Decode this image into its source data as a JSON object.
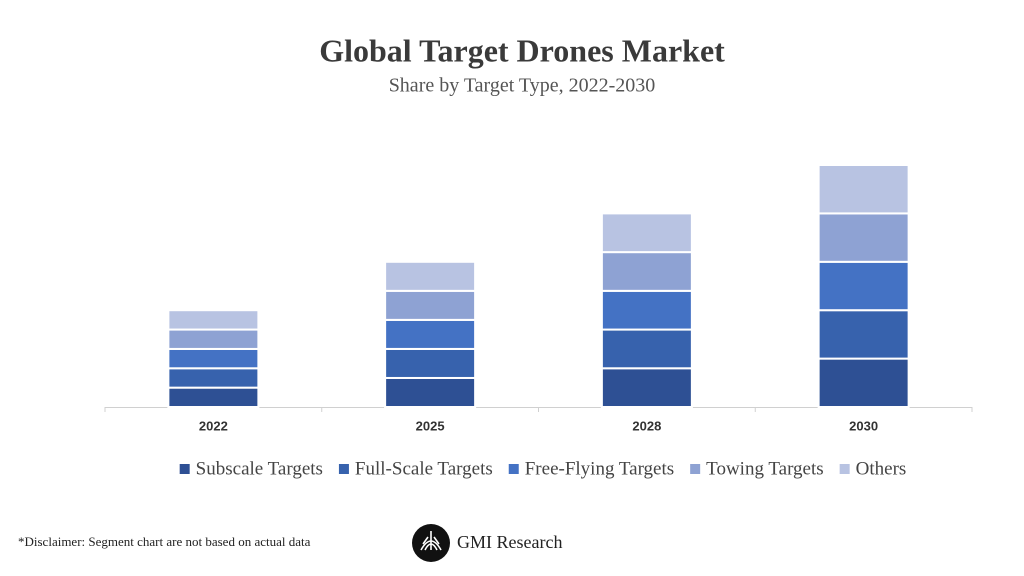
{
  "chart_data": {
    "type": "stacked-bar",
    "title": "Global Target Drones Market",
    "subtitle": "Share by Target Type, 2022-2030",
    "categories": [
      "2022",
      "2025",
      "2028",
      "2030"
    ],
    "series": [
      {
        "name": "Subscale Targets",
        "color": "#2e5094",
        "values": [
          20,
          30,
          40,
          50
        ]
      },
      {
        "name": "Full-Scale Targets",
        "color": "#3762ad",
        "values": [
          20,
          30,
          40,
          50
        ]
      },
      {
        "name": "Free-Flying Targets",
        "color": "#4472c4",
        "values": [
          20,
          30,
          40,
          50
        ]
      },
      {
        "name": "Towing Targets",
        "color": "#8ea2d3",
        "values": [
          20,
          30,
          40,
          50
        ]
      },
      {
        "name": "Others",
        "color": "#b8c3e2",
        "values": [
          20,
          30,
          40,
          50
        ]
      }
    ],
    "ylim": [
      0,
      250
    ],
    "legend": "bottom"
  },
  "footer": {
    "disclaimer": "*Disclaimer:  Segment chart are not based on actual data",
    "brand": "GMI Research"
  }
}
